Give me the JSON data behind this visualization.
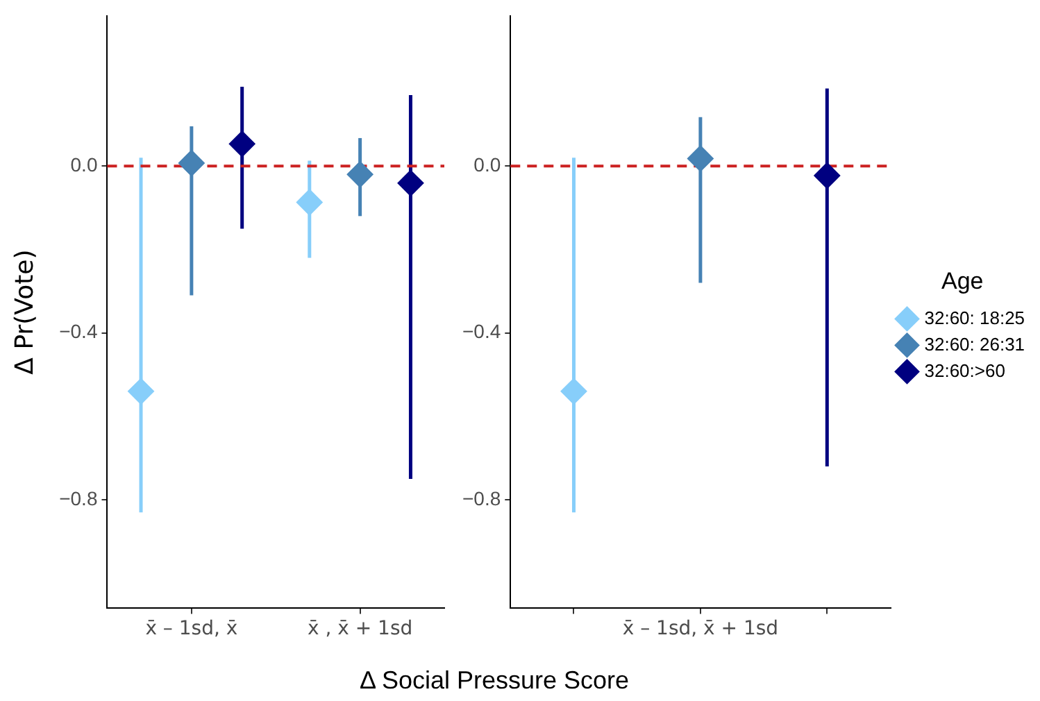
{
  "chart_data": [
    {
      "type": "scatter",
      "ylabel": "Δ Pr(Vote)",
      "xlabel": "Δ Social Pressure Score",
      "categories": [
        "x̄ – 1sd, x̄",
        "x̄ , x̄ + 1sd"
      ],
      "ylim": [
        -1.06,
        0.36
      ],
      "yticks": [
        {
          "value": 0,
          "label": "0.0"
        },
        {
          "value": -0.4,
          "label": "−0.4"
        },
        {
          "value": -0.8,
          "label": "−0.8"
        }
      ],
      "grid": false,
      "marker": "diamond",
      "legend": false,
      "ref_lines": [
        {
          "axis": "y",
          "value": 0,
          "color": "#cc2222",
          "line_style": "dashed"
        }
      ],
      "series": [
        {
          "color": "#87cefa",
          "values": [
            -0.54,
            -0.087
          ],
          "errors": [
            [
              -0.83,
              0.02
            ],
            [
              -0.22,
              0.013
            ]
          ]
        },
        {
          "color": "#4682b4",
          "values": [
            0.007,
            -0.02
          ],
          "errors": [
            [
              -0.31,
              0.095
            ],
            [
              -0.12,
              0.067
            ]
          ]
        },
        {
          "color": "#000080",
          "values": [
            0.053,
            -0.041
          ],
          "errors": [
            [
              -0.15,
              0.19
            ],
            [
              -0.75,
              0.17
            ]
          ]
        }
      ]
    },
    {
      "type": "scatter",
      "categories": [
        null,
        "x̄ – 1sd, x̄ + 1sd",
        null
      ],
      "ylim": [
        -1.06,
        0.36
      ],
      "yticks": [
        {
          "value": 0,
          "label": "0.0"
        },
        {
          "value": -0.4,
          "label": "−0.4"
        },
        {
          "value": -0.8,
          "label": "−0.8"
        }
      ],
      "grid": false,
      "marker": "diamond",
      "legend": "right",
      "legend_title": "Age",
      "ref_lines": [
        {
          "axis": "y",
          "value": 0,
          "color": "#cc2222",
          "line_style": "dashed"
        }
      ],
      "series": [
        {
          "name": "32:60: 18:25",
          "color": "#87cefa",
          "values": [
            -0.54,
            null,
            null
          ],
          "errors": [
            [
              -0.83,
              0.02
            ],
            null,
            null
          ]
        },
        {
          "name": "32:60: 26:31",
          "color": "#4682b4",
          "values": [
            null,
            0.018,
            null
          ],
          "errors": [
            null,
            [
              -0.28,
              0.117
            ],
            null
          ]
        },
        {
          "name": "32:60:>60",
          "color": "#000080",
          "values": [
            null,
            null,
            -0.023
          ],
          "errors": [
            null,
            null,
            [
              -0.72,
              0.186
            ]
          ]
        }
      ]
    }
  ]
}
